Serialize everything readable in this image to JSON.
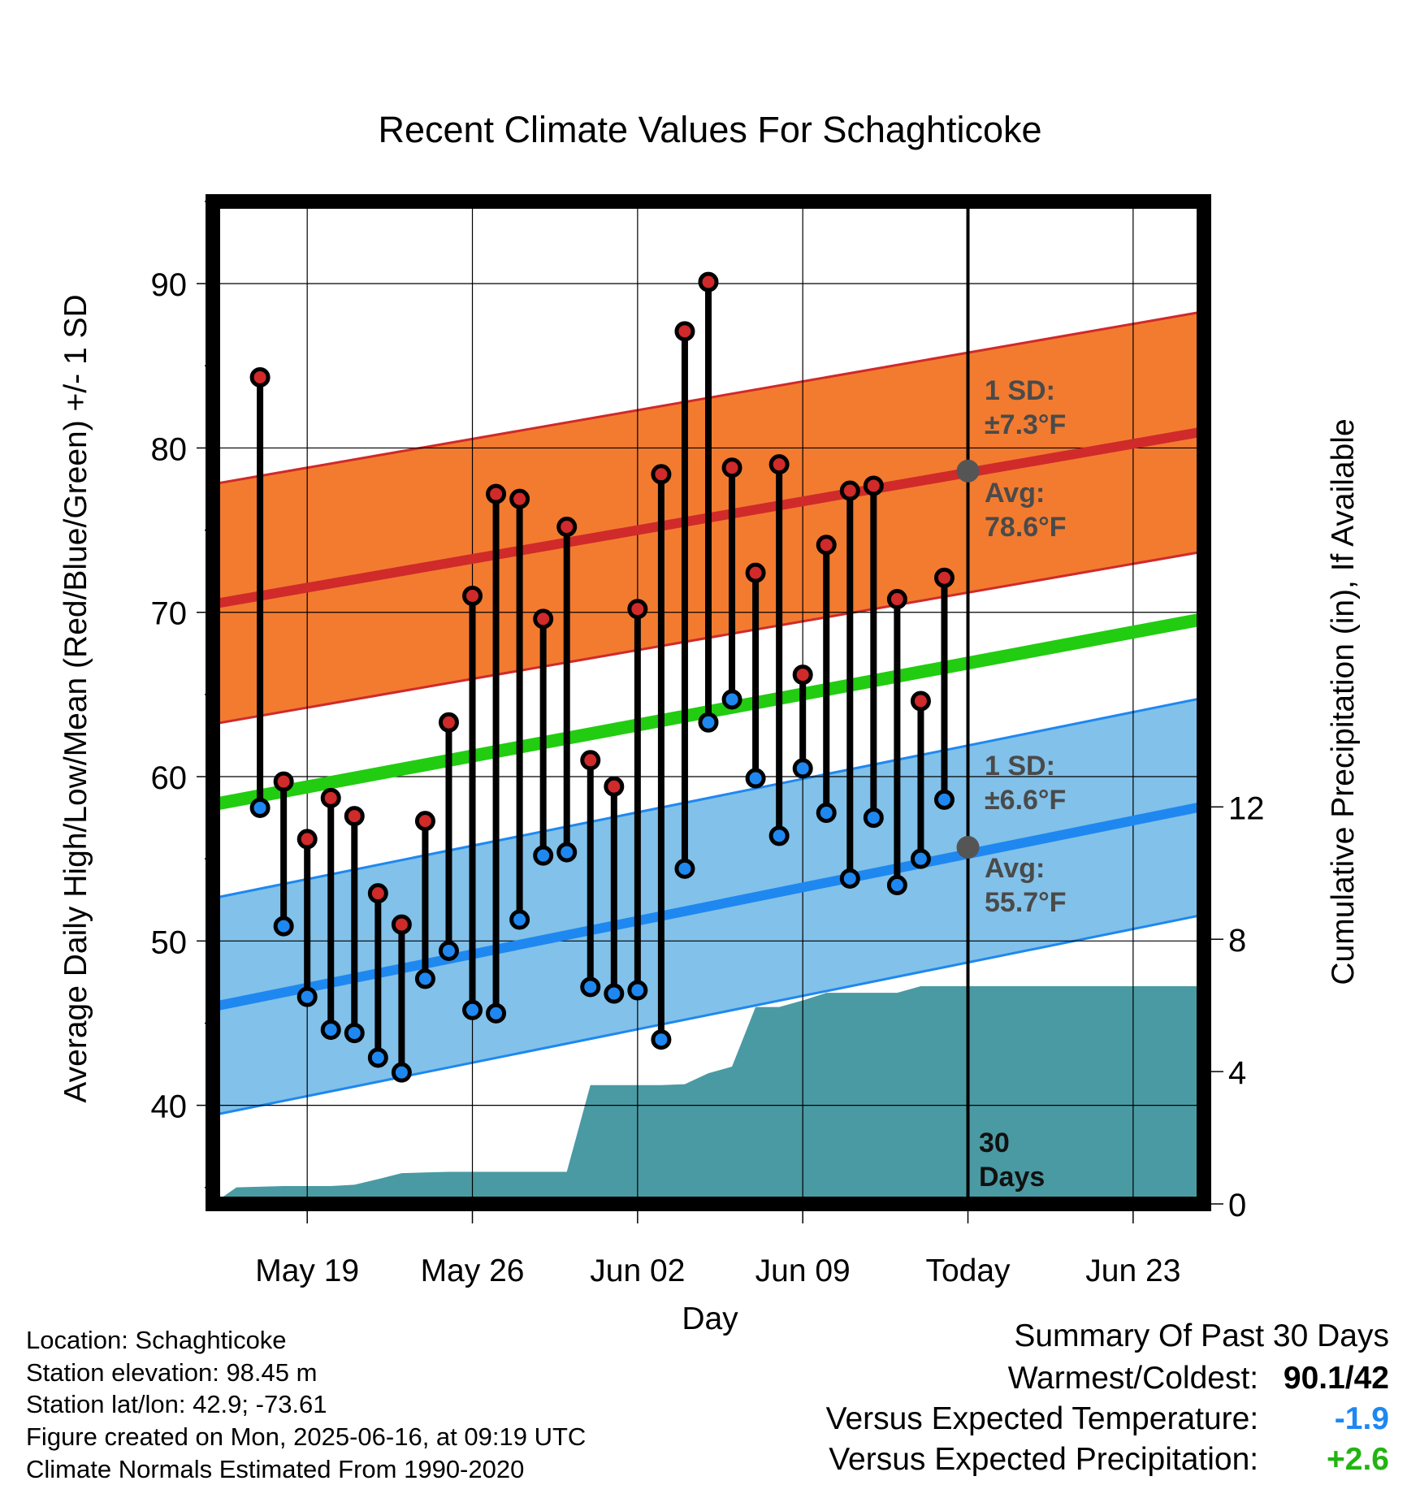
{
  "chart_data": {
    "type": "line",
    "title": "Recent Climate Values For Schaghticoke",
    "xlabel": "Day",
    "ylabel_left": "Average Daily High/Low/Mean (Red/Blue/Green) +/- 1 SD",
    "ylabel_right": "Cumulative Precipitation (in), If Available",
    "x_range": [
      "2025-05-15",
      "2025-06-26"
    ],
    "ylim_left": [
      34,
      95
    ],
    "ylim_right": [
      0,
      30.3
    ],
    "x_ticks": [
      {
        "date": "2025-05-19",
        "label": "May 19"
      },
      {
        "date": "2025-05-26",
        "label": "May 26"
      },
      {
        "date": "2025-06-02",
        "label": "Jun 02"
      },
      {
        "date": "2025-06-09",
        "label": "Jun 09"
      },
      {
        "date": "2025-06-16",
        "label": "Today"
      },
      {
        "date": "2025-06-23",
        "label": "Jun 23"
      }
    ],
    "y_ticks_left": [
      40,
      50,
      60,
      70,
      80,
      90
    ],
    "y_ticks_right": [
      0,
      4,
      8,
      12
    ],
    "grid": true,
    "today": "2025-06-16",
    "daily": {
      "dates": [
        "2025-05-17",
        "2025-05-18",
        "2025-05-19",
        "2025-05-20",
        "2025-05-21",
        "2025-05-22",
        "2025-05-23",
        "2025-05-24",
        "2025-05-25",
        "2025-05-26",
        "2025-05-27",
        "2025-05-28",
        "2025-05-29",
        "2025-05-30",
        "2025-05-31",
        "2025-06-01",
        "2025-06-02",
        "2025-06-03",
        "2025-06-04",
        "2025-06-05",
        "2025-06-06",
        "2025-06-07",
        "2025-06-08",
        "2025-06-09",
        "2025-06-10",
        "2025-06-11",
        "2025-06-12",
        "2025-06-13",
        "2025-06-14",
        "2025-06-15"
      ],
      "high": [
        84.3,
        59.7,
        56.2,
        58.7,
        57.6,
        52.9,
        51.0,
        57.3,
        63.3,
        71.0,
        77.2,
        76.9,
        69.6,
        75.2,
        61.0,
        59.4,
        70.2,
        78.4,
        87.1,
        90.1,
        78.8,
        72.4,
        79.0,
        66.2,
        74.1,
        77.4,
        77.7,
        70.8,
        64.6,
        72.1
      ],
      "low": [
        58.1,
        50.9,
        46.6,
        44.6,
        44.4,
        42.9,
        42.0,
        47.7,
        49.4,
        45.8,
        45.6,
        51.3,
        55.2,
        55.4,
        47.2,
        46.8,
        47.0,
        44.0,
        54.4,
        63.3,
        64.7,
        59.9,
        56.4,
        60.5,
        57.8,
        53.8,
        57.5,
        53.4,
        55.0,
        58.6
      ]
    },
    "series": [
      {
        "name": "Avg High",
        "color": "#d02a2a",
        "values_start": 70.5,
        "values_end": 81.0,
        "label_lines": [
          "Avg:",
          "78.6°F"
        ],
        "sd_lines": [
          "1 SD:",
          "±7.3°F"
        ]
      },
      {
        "name": "Avg Low",
        "color": "#1e88f0",
        "values_start": 46.0,
        "values_end": 58.2,
        "label_lines": [
          "Avg:",
          "55.7°F"
        ],
        "sd_lines": [
          "1 SD:",
          "±6.6°F"
        ]
      },
      {
        "name": "Avg Mean",
        "color": "#22cc11",
        "values_start": 58.3,
        "values_end": 69.6
      }
    ],
    "sd": {
      "high": 7.3,
      "low": 6.6
    },
    "today_markers": {
      "high": 78.6,
      "low": 55.7
    },
    "days_label": [
      "30",
      "Days"
    ],
    "precip_cumulative": [
      {
        "date": "2025-05-15",
        "value": 0.0
      },
      {
        "date": "2025-05-16",
        "value": 0.5
      },
      {
        "date": "2025-05-18",
        "value": 0.54
      },
      {
        "date": "2025-05-20",
        "value": 0.54
      },
      {
        "date": "2025-05-21",
        "value": 0.58
      },
      {
        "date": "2025-05-22",
        "value": 0.75
      },
      {
        "date": "2025-05-23",
        "value": 0.93
      },
      {
        "date": "2025-05-24",
        "value": 0.95
      },
      {
        "date": "2025-05-25",
        "value": 0.97
      },
      {
        "date": "2025-05-30",
        "value": 0.97
      },
      {
        "date": "2025-05-31",
        "value": 3.59
      },
      {
        "date": "2025-06-03",
        "value": 3.59
      },
      {
        "date": "2025-06-04",
        "value": 3.62
      },
      {
        "date": "2025-06-05",
        "value": 3.95
      },
      {
        "date": "2025-06-06",
        "value": 4.15
      },
      {
        "date": "2025-06-07",
        "value": 5.95
      },
      {
        "date": "2025-06-08",
        "value": 5.95
      },
      {
        "date": "2025-06-09",
        "value": 6.15
      },
      {
        "date": "2025-06-10",
        "value": 6.38
      },
      {
        "date": "2025-06-13",
        "value": 6.38
      },
      {
        "date": "2025-06-14",
        "value": 6.58
      },
      {
        "date": "2025-06-26",
        "value": 6.58
      }
    ],
    "colors": {
      "high_band": "#f27b30",
      "low_band": "#82c1e9",
      "precip": "#4a9aa3",
      "frame": "#000000",
      "marker_gray": "#555555"
    }
  },
  "info": {
    "location": "Location: Schaghticoke",
    "elevation": "Station elevation: 98.45 m",
    "latlon": "Station lat/lon: 42.9; -73.61",
    "created": "Figure created on Mon, 2025-06-16, at 09:19 UTC",
    "normals": "Climate Normals Estimated From 1990-2020"
  },
  "summary": {
    "title": "Summary Of Past 30 Days",
    "warm_cold_label": "Warmest/Coldest:",
    "warm_cold_value": "90.1/42",
    "temp_label": "Versus Expected Temperature:",
    "temp_value": "-1.9",
    "temp_color": "#1e88f0",
    "precip_label": "Versus Expected Precipitation:",
    "precip_value": "+2.6",
    "precip_color": "#22b411"
  }
}
